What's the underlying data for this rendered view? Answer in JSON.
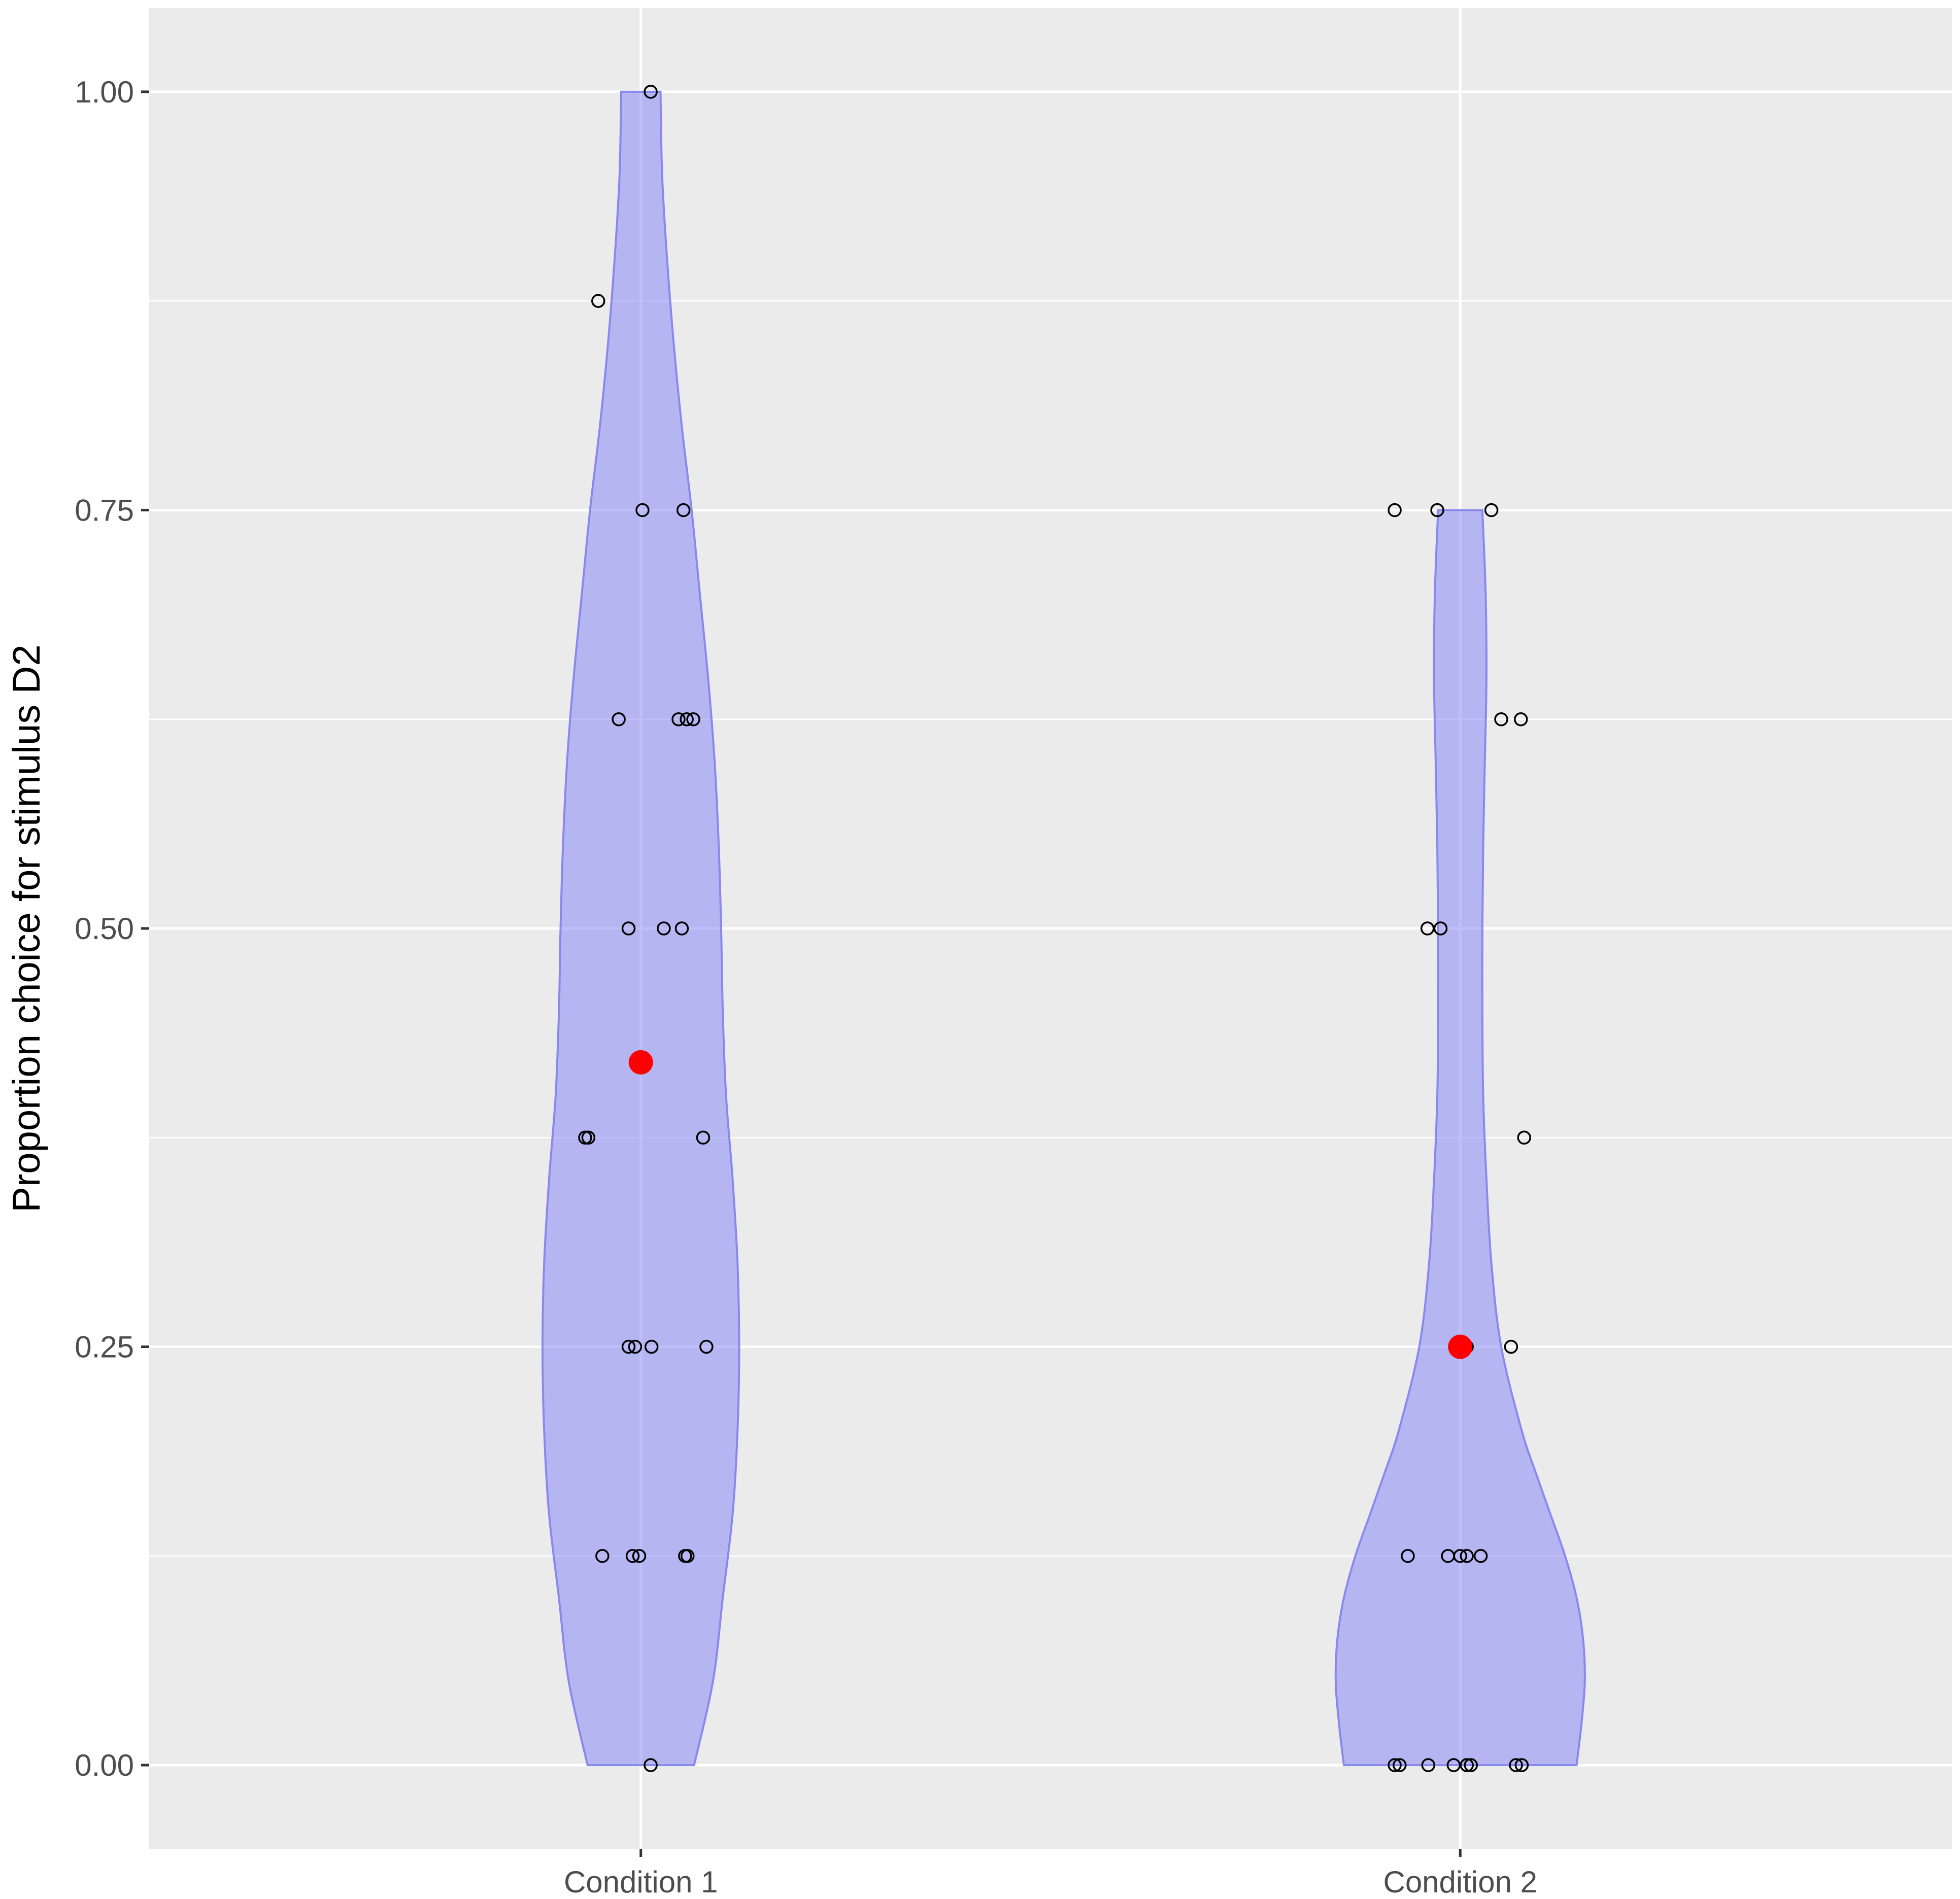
{
  "chart_data": {
    "type": "violin",
    "title": "",
    "xlabel": "",
    "ylabel": "Proportion choice for stimulus D2",
    "ylim": [
      -0.05,
      1.05
    ],
    "y_ticks": [
      {
        "value": 0,
        "label": "0.00"
      },
      {
        "value": 0.25,
        "label": "0.25"
      },
      {
        "value": 0.5,
        "label": "0.50"
      },
      {
        "value": 0.75,
        "label": "0.75"
      },
      {
        "value": 1,
        "label": "1.00"
      }
    ],
    "y_minor_ticks": [
      0.125,
      0.375,
      0.625,
      0.875
    ],
    "grid": true,
    "categories": [
      "Condition 1",
      "Condition 2"
    ],
    "colors": {
      "panel": "#ebebeb",
      "grid": "#ffffff",
      "violin_fill": "#8080f8",
      "violin_stroke": "#8888ee",
      "point_stroke": "#000000",
      "mean": "#ff0000"
    },
    "groups": [
      {
        "category": "Condition 1",
        "mean": 0.42,
        "violin_halfwidth": [
          {
            "y": 0.0,
            "w": 0.065
          },
          {
            "y": 0.05,
            "w": 0.088
          },
          {
            "y": 0.1,
            "w": 0.1
          },
          {
            "y": 0.15,
            "w": 0.112
          },
          {
            "y": 0.2,
            "w": 0.118
          },
          {
            "y": 0.25,
            "w": 0.12
          },
          {
            "y": 0.3,
            "w": 0.118
          },
          {
            "y": 0.35,
            "w": 0.112
          },
          {
            "y": 0.4,
            "w": 0.104
          },
          {
            "y": 0.45,
            "w": 0.1
          },
          {
            "y": 0.5,
            "w": 0.098
          },
          {
            "y": 0.55,
            "w": 0.095
          },
          {
            "y": 0.6,
            "w": 0.09
          },
          {
            "y": 0.65,
            "w": 0.082
          },
          {
            "y": 0.7,
            "w": 0.072
          },
          {
            "y": 0.75,
            "w": 0.062
          },
          {
            "y": 0.8,
            "w": 0.05
          },
          {
            "y": 0.85,
            "w": 0.04
          },
          {
            "y": 0.9,
            "w": 0.032
          },
          {
            "y": 0.95,
            "w": 0.026
          },
          {
            "y": 1.0,
            "w": 0.024
          }
        ],
        "points": [
          {
            "dx": 0.012,
            "y": 1.0
          },
          {
            "dx": -0.052,
            "y": 0.875
          },
          {
            "dx": 0.002,
            "y": 0.75
          },
          {
            "dx": 0.052,
            "y": 0.75
          },
          {
            "dx": -0.027,
            "y": 0.625
          },
          {
            "dx": 0.046,
            "y": 0.625
          },
          {
            "dx": 0.056,
            "y": 0.625
          },
          {
            "dx": 0.064,
            "y": 0.625
          },
          {
            "dx": -0.015,
            "y": 0.5
          },
          {
            "dx": 0.028,
            "y": 0.5
          },
          {
            "dx": 0.05,
            "y": 0.5
          },
          {
            "dx": -0.068,
            "y": 0.375
          },
          {
            "dx": -0.064,
            "y": 0.375
          },
          {
            "dx": 0.076,
            "y": 0.375
          },
          {
            "dx": -0.015,
            "y": 0.25
          },
          {
            "dx": -0.007,
            "y": 0.25
          },
          {
            "dx": 0.013,
            "y": 0.25
          },
          {
            "dx": 0.08,
            "y": 0.25
          },
          {
            "dx": -0.047,
            "y": 0.125
          },
          {
            "dx": -0.01,
            "y": 0.125
          },
          {
            "dx": -0.002,
            "y": 0.125
          },
          {
            "dx": 0.054,
            "y": 0.125
          },
          {
            "dx": 0.057,
            "y": 0.125
          },
          {
            "dx": 0.012,
            "y": 0.0
          }
        ]
      },
      {
        "category": "Condition 2",
        "mean": 0.25,
        "violin_halfwidth": [
          {
            "y": 0.0,
            "w": 0.142
          },
          {
            "y": 0.025,
            "w": 0.148
          },
          {
            "y": 0.05,
            "w": 0.152
          },
          {
            "y": 0.075,
            "w": 0.15
          },
          {
            "y": 0.1,
            "w": 0.142
          },
          {
            "y": 0.125,
            "w": 0.128
          },
          {
            "y": 0.15,
            "w": 0.11
          },
          {
            "y": 0.175,
            "w": 0.092
          },
          {
            "y": 0.2,
            "w": 0.075
          },
          {
            "y": 0.25,
            "w": 0.05
          },
          {
            "y": 0.3,
            "w": 0.038
          },
          {
            "y": 0.35,
            "w": 0.032
          },
          {
            "y": 0.4,
            "w": 0.028
          },
          {
            "y": 0.45,
            "w": 0.027
          },
          {
            "y": 0.5,
            "w": 0.027
          },
          {
            "y": 0.55,
            "w": 0.028
          },
          {
            "y": 0.6,
            "w": 0.03
          },
          {
            "y": 0.65,
            "w": 0.032
          },
          {
            "y": 0.7,
            "w": 0.031
          },
          {
            "y": 0.75,
            "w": 0.027
          }
        ],
        "points": [
          {
            "dx": -0.08,
            "y": 0.75
          },
          {
            "dx": -0.028,
            "y": 0.75
          },
          {
            "dx": 0.038,
            "y": 0.75
          },
          {
            "dx": 0.05,
            "y": 0.625
          },
          {
            "dx": 0.074,
            "y": 0.625
          },
          {
            "dx": -0.04,
            "y": 0.5
          },
          {
            "dx": -0.024,
            "y": 0.5
          },
          {
            "dx": 0.078,
            "y": 0.375
          },
          {
            "dx": 0.008,
            "y": 0.25
          },
          {
            "dx": 0.062,
            "y": 0.25
          },
          {
            "dx": -0.064,
            "y": 0.125
          },
          {
            "dx": -0.015,
            "y": 0.125
          },
          {
            "dx": 0.0,
            "y": 0.125
          },
          {
            "dx": 0.008,
            "y": 0.125
          },
          {
            "dx": 0.025,
            "y": 0.125
          },
          {
            "dx": -0.08,
            "y": 0.0
          },
          {
            "dx": -0.074,
            "y": 0.0
          },
          {
            "dx": -0.039,
            "y": 0.0
          },
          {
            "dx": -0.008,
            "y": 0.0
          },
          {
            "dx": 0.008,
            "y": 0.0
          },
          {
            "dx": 0.013,
            "y": 0.0
          },
          {
            "dx": 0.068,
            "y": 0.0
          },
          {
            "dx": 0.075,
            "y": 0.0
          }
        ]
      }
    ]
  }
}
